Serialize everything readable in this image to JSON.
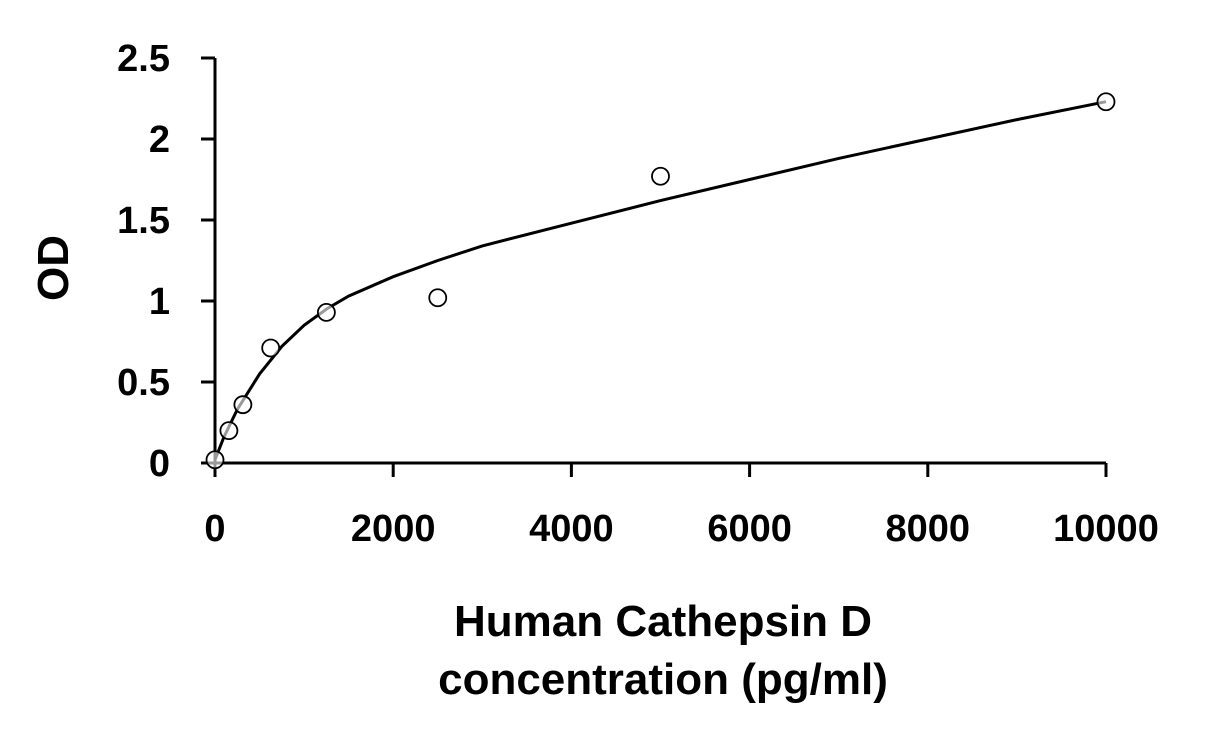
{
  "chart_data": {
    "type": "scatter",
    "title": "",
    "xlabel_lines": [
      "Human Cathepsin D",
      "concentration (pg/ml)"
    ],
    "ylabel": "OD",
    "xlim": [
      0,
      10000
    ],
    "ylim": [
      0,
      2.5
    ],
    "x_ticks": [
      0,
      2000,
      4000,
      6000,
      8000,
      10000
    ],
    "x_tick_labels": [
      "0",
      "2000",
      "4000",
      "6000",
      "8000",
      "10000"
    ],
    "y_ticks": [
      0,
      0.5,
      1,
      1.5,
      2,
      2.5
    ],
    "y_tick_labels": [
      "0",
      "0.5",
      "1",
      "1.5",
      "2",
      "2.5"
    ],
    "grid": false,
    "legend": "none",
    "points": {
      "x": [
        0,
        156,
        313,
        625,
        1250,
        2500,
        5000,
        10000
      ],
      "y": [
        0.02,
        0.2,
        0.36,
        0.71,
        0.93,
        1.02,
        1.77,
        2.23
      ]
    },
    "fit_curve": {
      "x": [
        0,
        100,
        250,
        500,
        750,
        1000,
        1250,
        1500,
        2000,
        2500,
        3000,
        4000,
        5000,
        6000,
        7000,
        8000,
        9000,
        10000
      ],
      "y": [
        0.02,
        0.16,
        0.33,
        0.55,
        0.72,
        0.85,
        0.95,
        1.03,
        1.15,
        1.25,
        1.34,
        1.48,
        1.62,
        1.75,
        1.88,
        2.0,
        2.12,
        2.23
      ]
    },
    "marker_color": "#000000",
    "line_color": "#000000"
  }
}
